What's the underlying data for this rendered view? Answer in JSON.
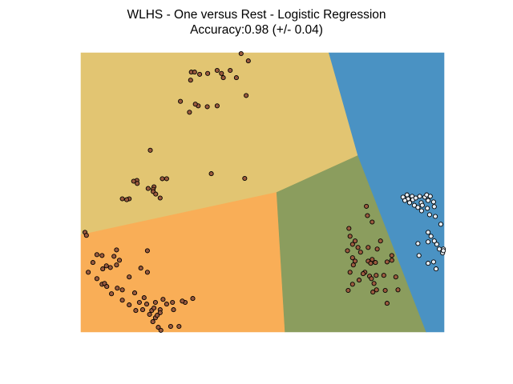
{
  "chart_data": {
    "type": "scatter",
    "title": "WLHS - One versus Rest - Logistic Regression",
    "subtitle": "Accuracy:0.98 (+/- 0.04)",
    "xlabel": "",
    "ylabel": "",
    "axes_visible": false,
    "xlim": [
      0,
      100
    ],
    "ylim": [
      0,
      100
    ],
    "colors": {
      "region_yellow": "#e2c572",
      "region_orange": "#f9ae57",
      "region_green": "#8b9d5e",
      "region_blue": "#4a92c3",
      "point_brown": "#9b5a3e",
      "point_light": "#e6eef7"
    },
    "regions": [
      {
        "name": "upper-left class",
        "color": "#e2c572",
        "polygon": [
          [
            0,
            100
          ],
          [
            68.3,
            100
          ],
          [
            76.3,
            63.2
          ],
          [
            53.9,
            50
          ],
          [
            0,
            34.8
          ]
        ]
      },
      {
        "name": "lower-left class",
        "color": "#f9ae57",
        "polygon": [
          [
            0,
            34.8
          ],
          [
            53.9,
            50
          ],
          [
            56.2,
            0
          ],
          [
            0,
            0
          ]
        ]
      },
      {
        "name": "lower-middle class",
        "color": "#8b9d5e",
        "polygon": [
          [
            53.9,
            50
          ],
          [
            76.3,
            63.2
          ],
          [
            95.1,
            0
          ],
          [
            56.2,
            0
          ]
        ]
      },
      {
        "name": "right class",
        "color": "#4a92c3",
        "polygon": [
          [
            68.3,
            100
          ],
          [
            100,
            100
          ],
          [
            100,
            0
          ],
          [
            95.1,
            0
          ],
          [
            76.3,
            63.2
          ]
        ]
      }
    ],
    "series": [
      {
        "name": "class-brown",
        "color": "#9b5a3e",
        "points": [
          [
            44.1,
            99.7
          ],
          [
            46.1,
            97.1
          ],
          [
            41.1,
            93.7
          ],
          [
            30.4,
            93.1
          ],
          [
            31.3,
            93.1
          ],
          [
            38.7,
            92.6
          ],
          [
            34.9,
            92.6
          ],
          [
            37.5,
            93.7
          ],
          [
            39.2,
            91.1
          ],
          [
            42.8,
            91.1
          ],
          [
            30.2,
            90.2
          ],
          [
            32.7,
            92.3
          ],
          [
            45.5,
            84.7
          ],
          [
            32.3,
            81.0
          ],
          [
            27.4,
            82.6
          ],
          [
            31.5,
            81.6
          ],
          [
            37.5,
            81.0
          ],
          [
            34.8,
            80.7
          ],
          [
            29.9,
            78.7
          ],
          [
            19.1,
            65.1
          ],
          [
            35.9,
            56.7
          ],
          [
            45.1,
            55.0
          ],
          [
            23.6,
            54.9
          ],
          [
            22.4,
            54.9
          ],
          [
            15.4,
            54.3
          ],
          [
            15.5,
            53.2
          ],
          [
            14.5,
            54.0
          ],
          [
            20.1,
            52.0
          ],
          [
            18.5,
            51.4
          ],
          [
            19.9,
            51.1
          ],
          [
            19.9,
            50.3
          ],
          [
            20.6,
            49.4
          ],
          [
            21.8,
            48.0
          ],
          [
            13.3,
            47.7
          ],
          [
            12.6,
            47.4
          ],
          [
            11.4,
            47.7
          ],
          [
            1.1,
            35.7
          ],
          [
            1.5,
            34.6
          ],
          [
            9.8,
            29.4
          ],
          [
            4.4,
            27.7
          ],
          [
            10.6,
            25.7
          ],
          [
            9.1,
            27.1
          ],
          [
            18.3,
            29.1
          ],
          [
            9.8,
            24.0
          ],
          [
            3.3,
            24.9
          ],
          [
            5.8,
            27.4
          ],
          [
            7.0,
            23.7
          ],
          [
            8.1,
            23.1
          ],
          [
            6.0,
            22.6
          ],
          [
            2.0,
            21.4
          ],
          [
            16.5,
            22.9
          ],
          [
            18.3,
            21.4
          ],
          [
            13.3,
            19.7
          ],
          [
            4.4,
            19.1
          ],
          [
            5.8,
            17.1
          ],
          [
            6.5,
            17.4
          ],
          [
            7.1,
            16.3
          ],
          [
            10.0,
            15.7
          ],
          [
            11.4,
            15.1
          ],
          [
            8.4,
            13.7
          ],
          [
            14.8,
            14.0
          ],
          [
            11.4,
            11.4
          ],
          [
            13.3,
            9.7
          ],
          [
            17.4,
            12.3
          ],
          [
            16.1,
            10.6
          ],
          [
            18.1,
            10.0
          ],
          [
            15.1,
            7.7
          ],
          [
            17.0,
            8.0
          ],
          [
            20.5,
            10.6
          ],
          [
            19.5,
            7.7
          ],
          [
            21.8,
            8.0
          ],
          [
            20.1,
            8.6
          ],
          [
            21.8,
            6.9
          ],
          [
            18.9,
            6.3
          ],
          [
            20.5,
            5.1
          ],
          [
            23.6,
            10.0
          ],
          [
            22.6,
            11.7
          ],
          [
            25.5,
            8.0
          ],
          [
            25.2,
            10.6
          ],
          [
            28.7,
            10.6
          ],
          [
            27.9,
            11.1
          ],
          [
            30.8,
            12.0
          ],
          [
            21.0,
            6.0
          ],
          [
            24.7,
            2.0
          ],
          [
            21.3,
            1.7
          ],
          [
            27.0,
            2.0
          ],
          [
            19.8,
            3.7
          ],
          [
            22.0,
            0.6
          ],
          [
            78.6,
            45.0
          ],
          [
            78.9,
            41.7
          ],
          [
            80.2,
            39.4
          ],
          [
            73.8,
            37.1
          ],
          [
            74.1,
            34.3
          ],
          [
            75.5,
            32.6
          ],
          [
            76.3,
            30.3
          ],
          [
            82.5,
            32.6
          ],
          [
            73.4,
            29.1
          ],
          [
            74.8,
            26.6
          ],
          [
            77.0,
            28.6
          ],
          [
            79.1,
            30.3
          ],
          [
            81.6,
            29.7
          ],
          [
            75.5,
            25.4
          ],
          [
            75.0,
            24.0
          ],
          [
            79.1,
            25.4
          ],
          [
            80.2,
            26.0
          ],
          [
            79.8,
            24.6
          ],
          [
            81.1,
            24.9
          ],
          [
            74.1,
            21.4
          ],
          [
            78.2,
            21.4
          ],
          [
            79.5,
            20.0
          ],
          [
            81.3,
            20.3
          ],
          [
            85.6,
            27.4
          ],
          [
            77.7,
            20.9
          ],
          [
            80.0,
            19.1
          ],
          [
            83.4,
            20.3
          ],
          [
            76.6,
            18.6
          ],
          [
            80.7,
            17.4
          ],
          [
            86.7,
            19.7
          ],
          [
            74.8,
            17.1
          ],
          [
            73.6,
            14.9
          ],
          [
            80.4,
            14.3
          ],
          [
            81.4,
            15.1
          ],
          [
            83.8,
            14.9
          ],
          [
            84.3,
            10.3
          ],
          [
            87.3,
            15.1
          ],
          [
            85.6,
            25.7
          ],
          [
            84.3,
            25.1
          ],
          [
            74.8,
            31.4
          ]
        ]
      },
      {
        "name": "class-light",
        "color": "#e6eef7",
        "points": [
          [
            88.7,
            48.3
          ],
          [
            89.8,
            49.1
          ],
          [
            90.1,
            47.7
          ],
          [
            91.2,
            48.6
          ],
          [
            91.4,
            47.4
          ],
          [
            92.2,
            48.0
          ],
          [
            93.3,
            48.6
          ],
          [
            94.7,
            48.3
          ],
          [
            95.2,
            49.1
          ],
          [
            96.2,
            48.6
          ],
          [
            89.2,
            47.1
          ],
          [
            90.5,
            46.3
          ],
          [
            91.8,
            45.4
          ],
          [
            93.7,
            46.3
          ],
          [
            94.0,
            45.4
          ],
          [
            95.6,
            47.1
          ],
          [
            97.1,
            46.6
          ],
          [
            92.8,
            44.6
          ],
          [
            93.8,
            43.4
          ],
          [
            95.4,
            44.3
          ],
          [
            97.3,
            44.9
          ],
          [
            96.0,
            42.0
          ],
          [
            97.6,
            41.4
          ],
          [
            99.1,
            38.6
          ],
          [
            96.4,
            34.3
          ],
          [
            97.3,
            32.6
          ],
          [
            98.0,
            31.4
          ],
          [
            95.6,
            32.3
          ],
          [
            92.8,
            31.7
          ],
          [
            93.1,
            27.4
          ],
          [
            99.8,
            29.7
          ],
          [
            99.6,
            28.3
          ],
          [
            99.8,
            29.1
          ],
          [
            97.1,
            25.1
          ],
          [
            95.6,
            24.6
          ],
          [
            97.8,
            22.6
          ],
          [
            98.7,
            29.7
          ],
          [
            95.6,
            35.7
          ]
        ]
      }
    ]
  }
}
